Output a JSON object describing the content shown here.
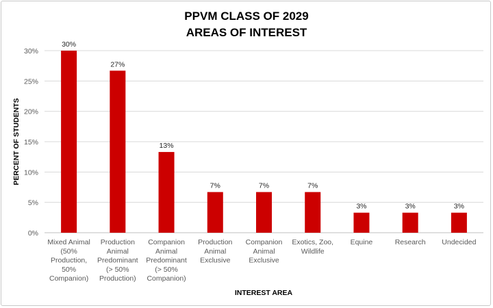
{
  "chart_data": {
    "type": "bar",
    "title": [
      "PPVM CLASS OF 2029",
      "AREAS OF INTEREST"
    ],
    "xlabel": "INTEREST AREA",
    "ylabel": "PERCENT OF STUDENTS",
    "categories": [
      [
        "Mixed Animal",
        "(50%",
        "Production,",
        "50%",
        "Companion)"
      ],
      [
        "Production",
        "Animal",
        "Predominant",
        "(> 50%",
        "Production)"
      ],
      [
        "Companion",
        "Animal",
        "Predominant",
        "(> 50%",
        "Companion)"
      ],
      [
        "Production",
        "Animal",
        "Exclusive"
      ],
      [
        "Companion",
        "Animal",
        "Exclusive"
      ],
      [
        "Exotics, Zoo,",
        "Wildlife"
      ],
      [
        "Equine"
      ],
      [
        "Research"
      ],
      [
        "Undecided"
      ]
    ],
    "values": [
      30,
      26.7,
      13.3,
      6.7,
      6.7,
      6.7,
      3.3,
      3.3,
      3.3
    ],
    "data_labels": [
      "30%",
      "27%",
      "13%",
      "7%",
      "7%",
      "7%",
      "3%",
      "3%",
      "3%"
    ],
    "ylim": [
      0,
      30
    ],
    "yticks": [
      0,
      5,
      10,
      15,
      20,
      25,
      30
    ],
    "ytick_labels": [
      "0%",
      "5%",
      "10%",
      "15%",
      "20%",
      "25%",
      "30%"
    ],
    "grid": true,
    "legend": "none",
    "bar_color": "#cc0000"
  }
}
